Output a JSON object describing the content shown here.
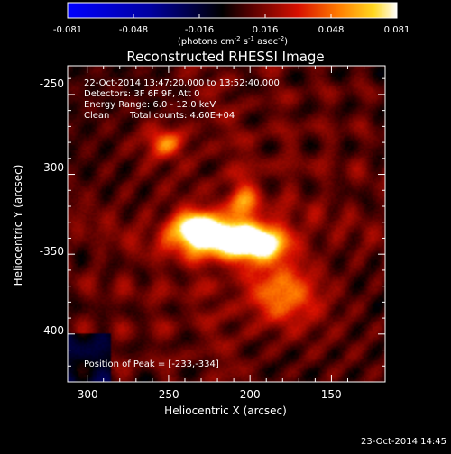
{
  "colorbar": {
    "ticks": [
      "-0.081",
      "-0.048",
      "-0.016",
      "0.016",
      "0.048",
      "0.081"
    ],
    "unit_main": "(photons cm",
    "unit_exp1": "-2",
    "unit_mid": " s",
    "unit_exp2": "-1",
    "unit_tail": " asec",
    "unit_exp3": "-2",
    "unit_end": ")"
  },
  "chart_data": {
    "type": "heatmap",
    "title": "Reconstructed RHESSI Image",
    "xlabel": "Heliocentric X (arcsec)",
    "ylabel": "Heliocentric Y (arcsec)",
    "xlim": [
      -312,
      -117
    ],
    "ylim": [
      -430,
      -232
    ],
    "xticks": [
      -300,
      -250,
      -200,
      -150
    ],
    "yticks": [
      -250,
      -300,
      -350,
      -400
    ],
    "color_range": [
      -0.081,
      0.081
    ],
    "colormap": [
      "#0000ff",
      "#000000",
      "#ff0000",
      "#ffff00",
      "#ffffff"
    ],
    "peak": [
      -233,
      -334
    ],
    "sources": [
      {
        "x": -233,
        "y": -334,
        "amp": 0.081,
        "sx": 10,
        "sy": 7
      },
      {
        "x": -195,
        "y": -343,
        "amp": 0.07,
        "sx": 13,
        "sy": 7
      },
      {
        "x": -215,
        "y": -340,
        "amp": 0.06,
        "sx": 20,
        "sy": 9
      },
      {
        "x": -252,
        "y": -280,
        "amp": 0.042,
        "sx": 9,
        "sy": 7
      },
      {
        "x": -205,
        "y": -317,
        "amp": 0.038,
        "sx": 6,
        "sy": 9
      },
      {
        "x": -180,
        "y": -375,
        "amp": 0.04,
        "sx": 16,
        "sy": 14
      }
    ],
    "annotations": [
      "22-Oct-2014 13:47:20.000 to 13:52:40.000",
      "Detectors: 3F 6F 9F, Att 0",
      "Energy Range: 6.0 - 12.0 keV",
      "Clean",
      "Total counts: 4.60E+04",
      "Position of Peak = [-233,-334]"
    ]
  },
  "footer": {
    "timestamp": "23-Oct-2014 14:45"
  }
}
